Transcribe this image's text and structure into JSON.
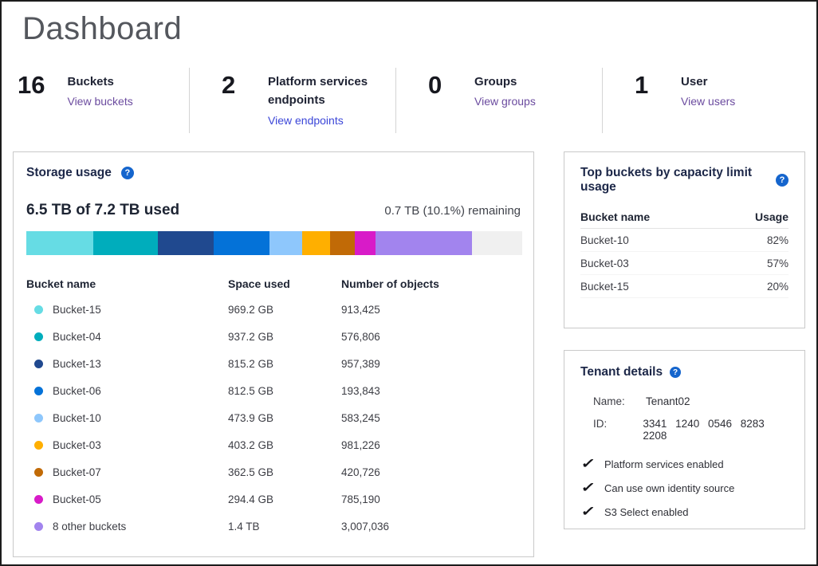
{
  "page": {
    "title": "Dashboard"
  },
  "stats": [
    {
      "value": "16",
      "label": "Buckets",
      "link": "View buckets",
      "link_color": "#6b4b9f"
    },
    {
      "value": "2",
      "label": "Platform services endpoints",
      "link": "View endpoints",
      "link_color": "#3b46d8"
    },
    {
      "value": "0",
      "label": "Groups",
      "link": "View groups",
      "link_color": "#6b4b9f"
    },
    {
      "value": "1",
      "label": "User",
      "link": "View users",
      "link_color": "#6b4b9f"
    }
  ],
  "storage_panel": {
    "title": "Storage usage",
    "help_icon": "question-mark",
    "used_text": "6.5 TB of 7.2 TB used",
    "remaining_text": "0.7 TB (10.1%) remaining",
    "total_gb": 7200,
    "remaining_color": "#f0f0f0",
    "columns": [
      "Bucket name",
      "Space used",
      "Number of objects"
    ],
    "buckets": [
      {
        "name": "Bucket-15",
        "space": "969.2 GB",
        "gb": 969.2,
        "objects": "913,425",
        "color": "#66dce4"
      },
      {
        "name": "Bucket-04",
        "space": "937.2 GB",
        "gb": 937.2,
        "objects": "576,806",
        "color": "#00adbc"
      },
      {
        "name": "Bucket-13",
        "space": "815.2 GB",
        "gb": 815.2,
        "objects": "957,389",
        "color": "#20498f"
      },
      {
        "name": "Bucket-06",
        "space": "812.5 GB",
        "gb": 812.5,
        "objects": "193,843",
        "color": "#0472d8"
      },
      {
        "name": "Bucket-10",
        "space": "473.9 GB",
        "gb": 473.9,
        "objects": "583,245",
        "color": "#8ec7fc"
      },
      {
        "name": "Bucket-03",
        "space": "403.2 GB",
        "gb": 403.2,
        "objects": "981,226",
        "color": "#ffaf00"
      },
      {
        "name": "Bucket-07",
        "space": "362.5 GB",
        "gb": 362.5,
        "objects": "420,726",
        "color": "#c16a06"
      },
      {
        "name": "Bucket-05",
        "space": "294.4 GB",
        "gb": 294.4,
        "objects": "785,190",
        "color": "#d81bc8"
      },
      {
        "name": "8 other buckets",
        "space": "1.4 TB",
        "gb": 1400,
        "objects": "3,007,036",
        "color": "#a284ee"
      }
    ]
  },
  "top_buckets_panel": {
    "title": "Top buckets by capacity limit usage",
    "help_icon": "question-mark",
    "columns": [
      "Bucket name",
      "Usage"
    ],
    "rows": [
      {
        "name": "Bucket-10",
        "usage": "82%"
      },
      {
        "name": "Bucket-03",
        "usage": "57%"
      },
      {
        "name": "Bucket-15",
        "usage": "20%"
      }
    ]
  },
  "tenant_panel": {
    "title": "Tenant details",
    "help_icon": "question-mark",
    "fields": [
      {
        "label": "Name:",
        "value": "Tenant02"
      },
      {
        "label": "ID:",
        "value": "3341 1240 0546 8283 2208"
      }
    ],
    "features": [
      "Platform services enabled",
      "Can use own identity source",
      "S3 Select enabled"
    ]
  }
}
